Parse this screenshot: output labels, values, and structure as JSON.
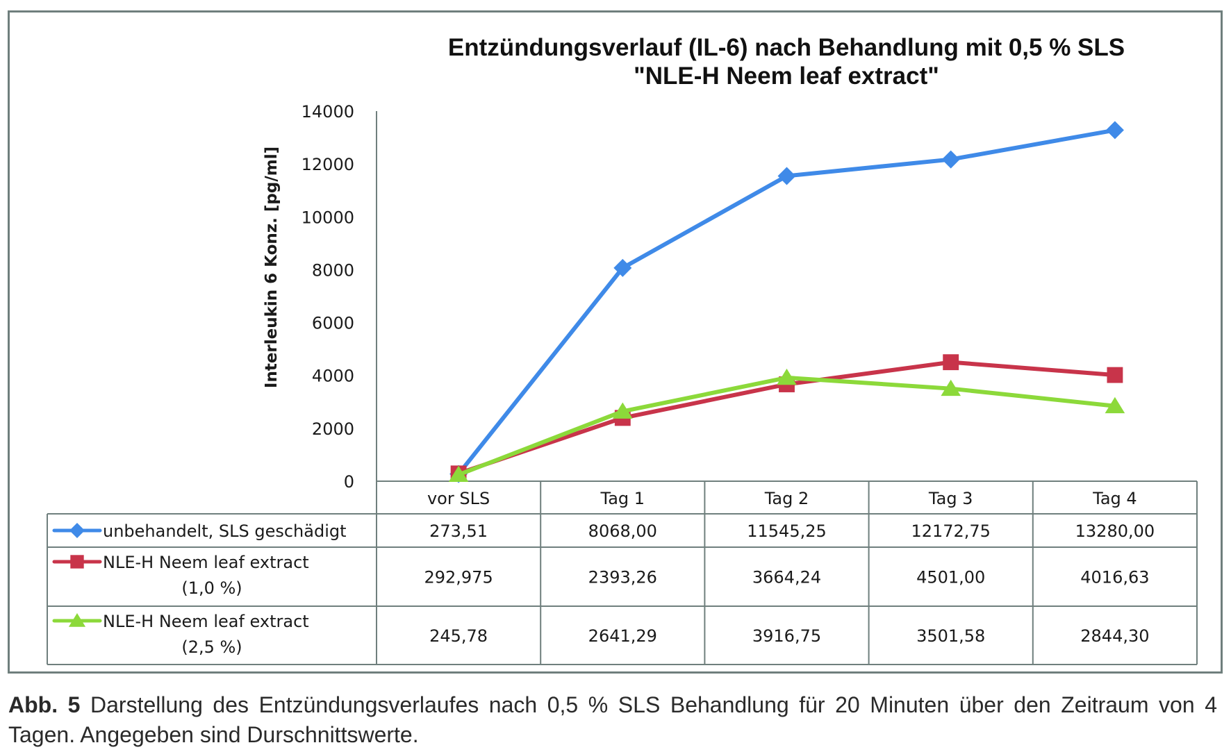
{
  "chart_data": {
    "type": "line",
    "title": "Entzündungsverlauf (IL-6) nach Behandlung mit 0,5 %  SLS",
    "subtitle": "\"NLE-H Neem leaf extract\"",
    "xlabel": "",
    "ylabel": "Interleukin 6 Konz. [pg/ml]",
    "ylim": [
      0,
      14000
    ],
    "yticks": [
      0,
      2000,
      4000,
      6000,
      8000,
      10000,
      12000,
      14000
    ],
    "ytick_labels": [
      "0",
      "2000",
      "4000",
      "6000",
      "8000",
      "10000",
      "12000",
      "14000"
    ],
    "grid": false,
    "legend": "data-table",
    "categories": [
      "vor SLS",
      "Tag 1",
      "Tag 2",
      "Tag 3",
      "Tag 4"
    ],
    "series": [
      {
        "name": "unbehandelt, SLS geschädigt",
        "name_lines": [
          "unbehandelt, SLS geschädigt"
        ],
        "marker": "diamond",
        "color": "#3F8AE8",
        "values": [
          273.51,
          8068.0,
          11545.25,
          12172.75,
          13280.0
        ],
        "labels": [
          "273,51",
          "8068,00",
          "11545,25",
          "12172,75",
          "13280,00"
        ]
      },
      {
        "name": "NLE-H Neem leaf extract (1,0 %)",
        "name_lines": [
          "NLE-H Neem leaf extract",
          "(1,0 %)"
        ],
        "marker": "square",
        "color": "#C8344A",
        "values": [
          292.975,
          2393.26,
          3664.24,
          4501.0,
          4016.63
        ],
        "labels": [
          "292,975",
          "2393,26",
          "3664,24",
          "4501,00",
          "4016,63"
        ]
      },
      {
        "name": "NLE-H Neem leaf extract (2,5 %)",
        "name_lines": [
          "NLE-H Neem leaf extract",
          "(2,5 %)"
        ],
        "marker": "triangle",
        "color": "#8CD93A",
        "values": [
          245.78,
          2641.29,
          3916.75,
          3501.58,
          2844.3
        ],
        "labels": [
          "245,78",
          "2641,29",
          "3916,75",
          "3501,58",
          "2844,30"
        ]
      }
    ]
  },
  "caption": {
    "label": "Abb. 5",
    "text": " Darstellung des Entzündungsverlaufes nach 0,5 % SLS Behandlung für 20 Minuten über den Zeitraum von 4 Tagen. Angegeben sind Durschnittswerte."
  }
}
